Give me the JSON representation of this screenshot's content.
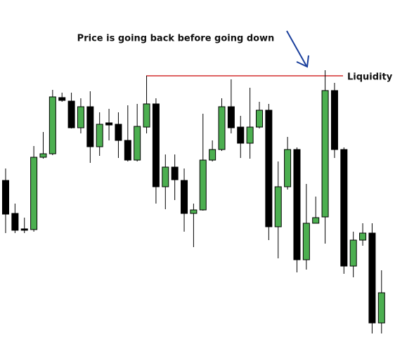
{
  "chart_data": {
    "type": "candlestick",
    "annotation": "Price is going back before going down",
    "up_color": "#4caf50",
    "down_color": "#000000",
    "ylim": [
      0,
      490
    ],
    "open": [
      233,
      186,
      164,
      163,
      266,
      271,
      351,
      346,
      308,
      338,
      281,
      315,
      313,
      290,
      262,
      309,
      342,
      224,
      252,
      233,
      186,
      191,
      262,
      277,
      338,
      309,
      286,
      309,
      333,
      167,
      224,
      277,
      120,
      172,
      181,
      361,
      277,
      111,
      148,
      158,
      30
    ],
    "high": [
      250,
      200,
      180,
      282,
      302,
      362,
      358,
      358,
      350,
      360,
      330,
      335,
      330,
      340,
      342,
      382,
      350,
      270,
      270,
      250,
      200,
      328,
      290,
      350,
      377,
      325,
      365,
      345,
      342,
      260,
      295,
      280,
      228,
      210,
      390,
      372,
      280,
      160,
      172,
      172,
      105
    ],
    "low": [
      158,
      158,
      158,
      160,
      264,
      269,
      345,
      307,
      300,
      258,
      268,
      290,
      265,
      260,
      260,
      300,
      200,
      192,
      205,
      160,
      138,
      190,
      260,
      275,
      300,
      265,
      264,
      307,
      148,
      122,
      220,
      102,
      106,
      172,
      143,
      265,
      100,
      95,
      140,
      15,
      15
    ],
    "close": [
      185,
      162,
      162,
      266,
      271,
      352,
      347,
      308,
      338,
      281,
      313,
      312,
      290,
      262,
      310,
      342,
      224,
      252,
      234,
      186,
      191,
      262,
      277,
      338,
      308,
      286,
      309,
      333,
      167,
      224,
      277,
      120,
      172,
      180,
      361,
      277,
      111,
      148,
      158,
      30,
      73
    ],
    "hline": {
      "label": "Liquidity",
      "value": 382,
      "color": "#d32f2f"
    }
  }
}
